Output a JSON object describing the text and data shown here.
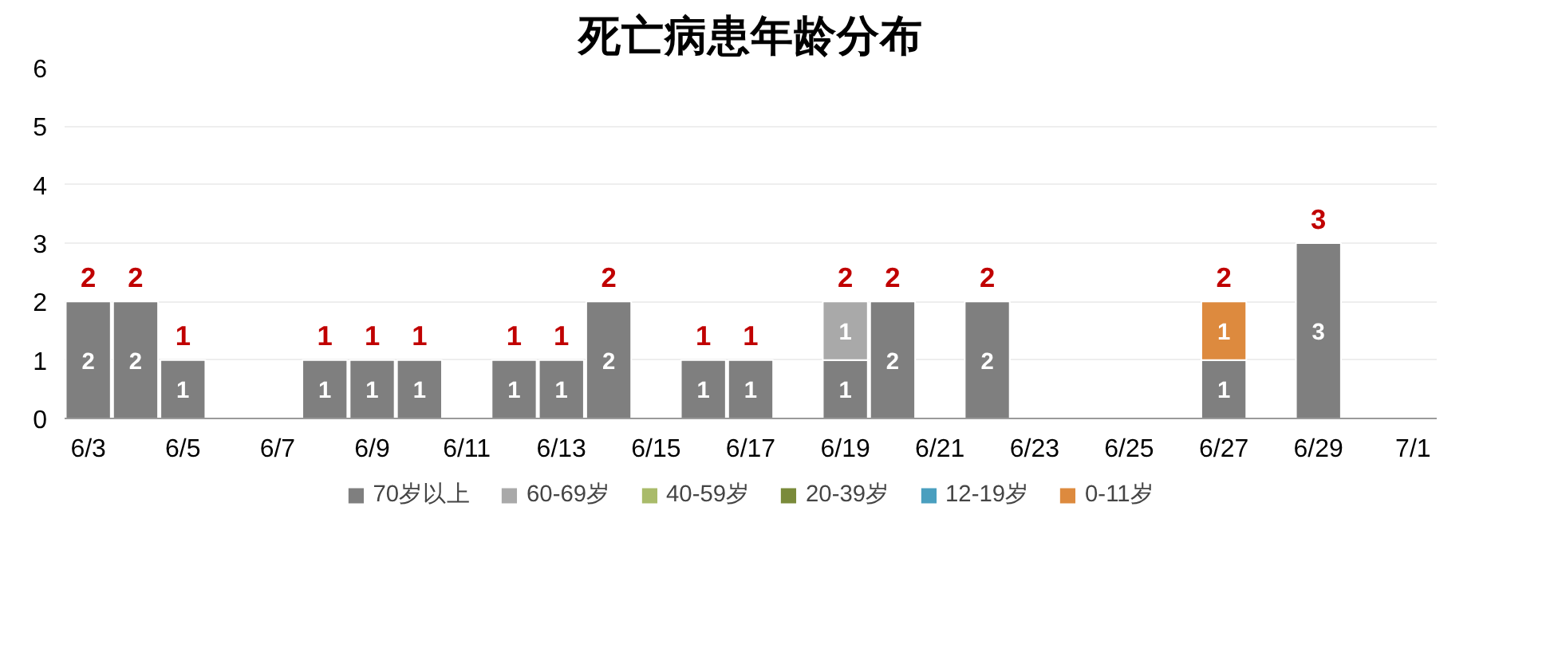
{
  "chart_data": {
    "type": "bar",
    "title": "死亡病患年龄分布",
    "stacked": true,
    "categories": [
      "6/3",
      null,
      "6/5",
      null,
      "6/7",
      null,
      "6/9",
      null,
      "6/11",
      null,
      "6/13",
      null,
      "6/15",
      null,
      "6/17",
      null,
      "6/19",
      null,
      "6/21",
      null,
      "6/23",
      null,
      "6/25",
      null,
      "6/27",
      null,
      "6/29",
      null,
      "7/1"
    ],
    "series": [
      {
        "name": "70岁以上",
        "color": "#7f7f7f",
        "values": [
          2,
          2,
          1,
          null,
          null,
          1,
          1,
          1,
          null,
          1,
          1,
          2,
          null,
          1,
          1,
          null,
          1,
          2,
          null,
          2,
          null,
          null,
          null,
          null,
          1,
          null,
          3,
          null,
          null
        ]
      },
      {
        "name": "60-69岁",
        "color": "#a9a9a9",
        "values": [
          null,
          null,
          null,
          null,
          null,
          null,
          null,
          null,
          null,
          null,
          null,
          null,
          null,
          null,
          null,
          null,
          1,
          null,
          null,
          null,
          null,
          null,
          null,
          null,
          null,
          null,
          null,
          null,
          null
        ]
      },
      {
        "name": "40-59岁",
        "color": "#a9bb6a",
        "values": [
          null,
          null,
          null,
          null,
          null,
          null,
          null,
          null,
          null,
          null,
          null,
          null,
          null,
          null,
          null,
          null,
          null,
          null,
          null,
          null,
          null,
          null,
          null,
          null,
          null,
          null,
          null,
          null,
          null
        ]
      },
      {
        "name": "20-39岁",
        "color": "#7a8a3a",
        "values": [
          null,
          null,
          null,
          null,
          null,
          null,
          null,
          null,
          null,
          null,
          null,
          null,
          null,
          null,
          null,
          null,
          null,
          null,
          null,
          null,
          null,
          null,
          null,
          null,
          null,
          null,
          null,
          null,
          null
        ]
      },
      {
        "name": "12-19岁",
        "color": "#4a9fbf",
        "values": [
          null,
          null,
          null,
          null,
          null,
          null,
          null,
          null,
          null,
          null,
          null,
          null,
          null,
          null,
          null,
          null,
          null,
          null,
          null,
          null,
          null,
          null,
          null,
          null,
          null,
          null,
          null,
          null,
          null
        ]
      },
      {
        "name": "0-11岁",
        "color": "#dd8a3e",
        "values": [
          null,
          null,
          null,
          null,
          null,
          null,
          null,
          null,
          null,
          null,
          null,
          null,
          null,
          null,
          null,
          null,
          null,
          null,
          null,
          null,
          null,
          null,
          null,
          null,
          1,
          null,
          null,
          null,
          null
        ]
      }
    ],
    "totals": [
      "2",
      "2",
      "1",
      null,
      null,
      "1",
      "1",
      "1",
      null,
      "1",
      "1",
      "2",
      null,
      "1",
      "1",
      null,
      "2",
      "2",
      null,
      "2",
      null,
      null,
      null,
      null,
      "2",
      null,
      "3",
      null,
      null
    ],
    "data_labels": true,
    "ylim": [
      0,
      6
    ],
    "yticks": [
      0,
      1,
      2,
      3,
      4,
      5,
      6
    ],
    "grid": "y",
    "legend": "bottom"
  }
}
